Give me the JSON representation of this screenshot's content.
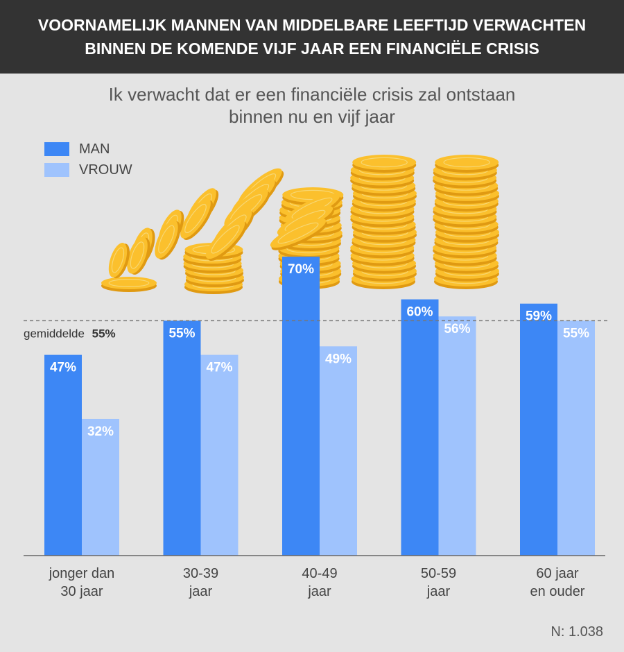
{
  "header": {
    "title_line1": "VOORNAMELIJK MANNEN VAN MIDDELBARE LEEFTIJD VERWACHTEN",
    "title_line2": "BINNEN DE KOMENDE VIJF JAAR EEN FINANCIËLE CRISIS"
  },
  "subtitle": {
    "line1": "Ik verwacht dat er een financiële crisis zal ontstaan",
    "line2": "binnen nu en vijf jaar"
  },
  "legend": [
    {
      "label": "MAN",
      "color": "#3d87f5"
    },
    {
      "label": "VROUW",
      "color": "#9fc3fd"
    }
  ],
  "average": {
    "label": "gemiddelde",
    "value_label": "55%",
    "value": 55
  },
  "footnote": "N: 1.038",
  "colors": {
    "man": "#3d87f5",
    "vrouw": "#9fc3fd",
    "header_bg": "#333333",
    "background": "#e4e4e4",
    "coin": "#fbc02d"
  },
  "chart_data": {
    "type": "bar",
    "title": "Ik verwacht dat er een financiële crisis zal ontstaan binnen nu en vijf jaar",
    "categories": [
      [
        "jonger dan",
        "30 jaar"
      ],
      [
        "30-39",
        "jaar"
      ],
      [
        "40-49",
        "jaar"
      ],
      [
        "50-59",
        "jaar"
      ],
      [
        "60 jaar",
        "en ouder"
      ]
    ],
    "series": [
      {
        "name": "MAN",
        "values": [
          47,
          55,
          70,
          60,
          59
        ],
        "labels": [
          "47%",
          "55%",
          "70%",
          "60%",
          "59%"
        ]
      },
      {
        "name": "VROUW",
        "values": [
          32,
          47,
          49,
          56,
          55
        ],
        "labels": [
          "32%",
          "47%",
          "49%",
          "56%",
          "55%"
        ]
      }
    ],
    "ylim": [
      0,
      70
    ],
    "reference_line": 55,
    "grid": false,
    "legend_position": "top-left"
  }
}
